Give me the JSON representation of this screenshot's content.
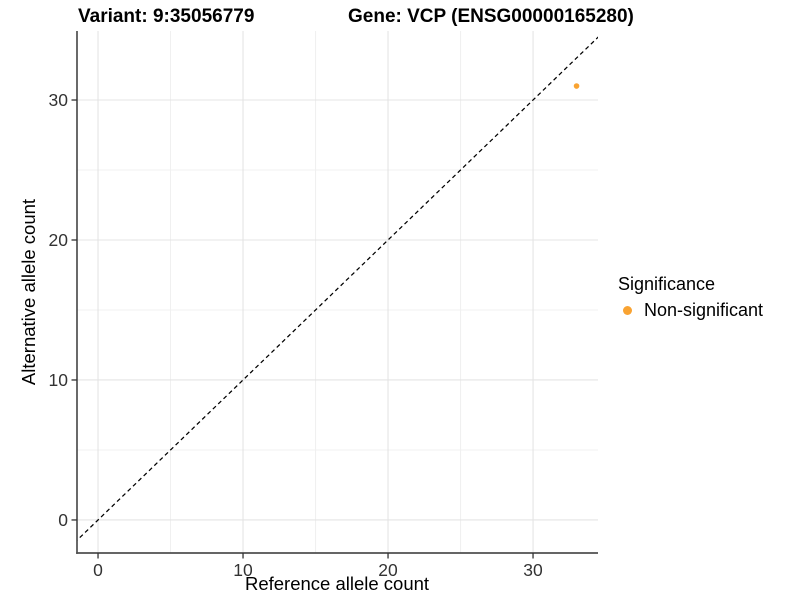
{
  "chart_data": {
    "type": "scatter",
    "title_left": "Variant: 9:35056779",
    "title_right": "Gene: VCP (ENSG00000165280)",
    "xlabel": "Reference allele count",
    "ylabel": "Alternative allele count",
    "xlim": [
      -1.45,
      34.48
    ],
    "ylim": [
      -2.36,
      34.93
    ],
    "x_ticks": [
      0,
      10,
      20,
      30
    ],
    "y_ticks": [
      0,
      10,
      20,
      30
    ],
    "x_minor_ticks": [
      5,
      15,
      25
    ],
    "y_minor_ticks": [
      5,
      15,
      25
    ],
    "grid": true,
    "legend_position": "right",
    "reference_line": {
      "type": "identity",
      "slope": 1,
      "intercept": 0,
      "style": "dashed",
      "color": "#000000"
    },
    "series": [
      {
        "name": "Non-significant",
        "color": "#F9A332",
        "points": [
          {
            "x": 33,
            "y": 31
          }
        ]
      }
    ],
    "legend": {
      "title": "Significance",
      "entries": [
        {
          "label": "Non-significant",
          "color": "#F9A332"
        }
      ]
    },
    "colors": {
      "grid_major": "#E4E4E4",
      "grid_minor": "#F0F0F0",
      "axis_line": "#4F4F4F",
      "tick_mark": "#333333",
      "tick_label": "#333333",
      "text": "#000000",
      "background": "#FFFFFF"
    }
  }
}
